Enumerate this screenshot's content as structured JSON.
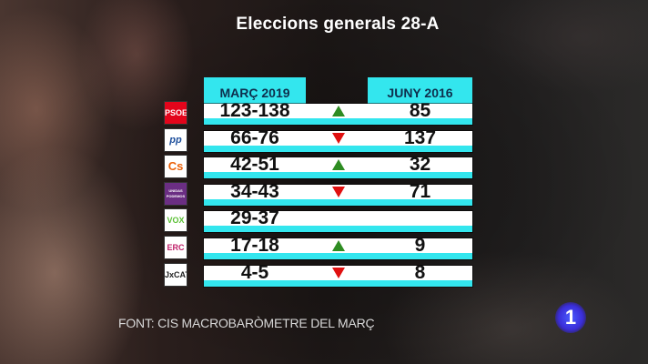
{
  "title": "Eleccions generals 28-A",
  "headers": {
    "col_a": "MARÇ 2019",
    "col_b": "JUNY 2016"
  },
  "rows": [
    {
      "party": "PSOE",
      "logo_label": "PSOE",
      "logo_bg": "#e3051b",
      "logo_fg": "#ffffff",
      "forecast": "123-138",
      "trend": "up",
      "previous": "85"
    },
    {
      "party": "PP",
      "logo_label": "pp",
      "logo_bg": "#ffffff",
      "logo_fg": "#1d4f9c",
      "forecast": "66-76",
      "trend": "down",
      "previous": "137"
    },
    {
      "party": "Cs",
      "logo_label": "Cs",
      "logo_bg": "#ffffff",
      "logo_fg": "#eb6109",
      "forecast": "42-51",
      "trend": "up",
      "previous": "32"
    },
    {
      "party": "Unidos Podemos",
      "logo_label": "UNIDAS PODEMOS",
      "logo_bg": "#6b2e83",
      "logo_fg": "#ffffff",
      "forecast": "34-43",
      "trend": "down",
      "previous": "71"
    },
    {
      "party": "VOX",
      "logo_label": "VOX",
      "logo_bg": "#ffffff",
      "logo_fg": "#5bc035",
      "forecast": "29-37",
      "trend": "",
      "previous": ""
    },
    {
      "party": "ERC",
      "logo_label": "ERC",
      "logo_bg": "#ffffff",
      "logo_fg": "#c0206a",
      "forecast": "17-18",
      "trend": "up",
      "previous": "9"
    },
    {
      "party": "Junts per Catalunya",
      "logo_label": "JxCAT",
      "logo_bg": "#ffffff",
      "logo_fg": "#222222",
      "forecast": "4-5",
      "trend": "down",
      "previous": "8"
    }
  ],
  "source": "FONT: CIS MACROBARÒMETRE DEL MARÇ",
  "channel_logo": "1",
  "colors": {
    "cyan": "#33e6ee",
    "up": "#2e8c22",
    "down": "#e01010"
  }
}
